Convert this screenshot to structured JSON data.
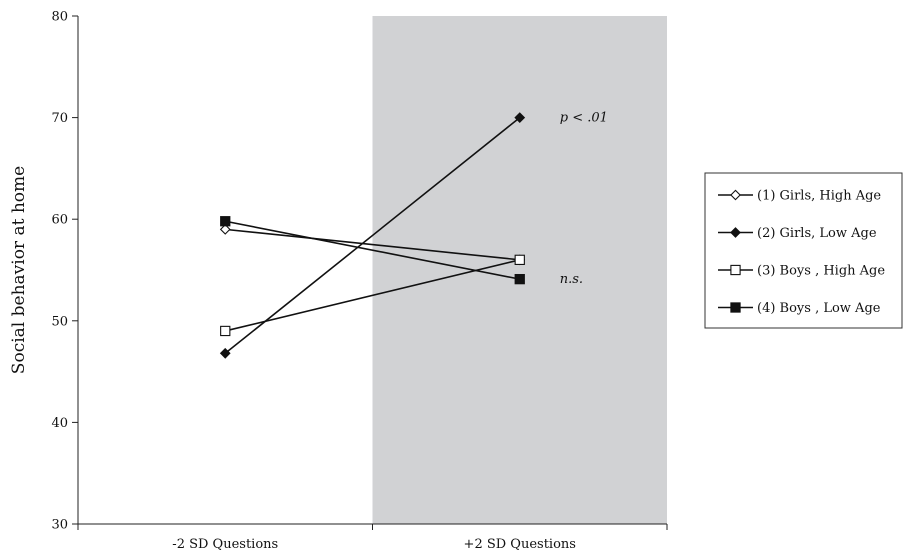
{
  "chart_data": {
    "type": "line",
    "title": "",
    "xlabel": "",
    "ylabel": "Social behavior at home",
    "categories": [
      "-2 SD Questions",
      "+2 SD Questions"
    ],
    "ylim": [
      30,
      80
    ],
    "yticks": [
      30,
      40,
      50,
      60,
      70,
      80
    ],
    "grid": false,
    "shaded_region": {
      "category": "+2 SD Questions",
      "color": "#d1d2d4"
    },
    "legend_position": "right",
    "series": [
      {
        "name": "(1) Girls, High Age",
        "values": [
          59.0,
          56.0
        ],
        "marker": "diamond-open"
      },
      {
        "name": "(2) Girls, Low Age",
        "values": [
          46.8,
          70.0
        ],
        "marker": "diamond-filled"
      },
      {
        "name": "(3) Boys , High Age",
        "values": [
          49.0,
          56.0
        ],
        "marker": "square-open"
      },
      {
        "name": "(4) Boys , Low Age",
        "values": [
          59.8,
          54.1
        ],
        "marker": "square-filled"
      }
    ],
    "annotations": [
      {
        "text": "p < .01",
        "series": 1,
        "point": 1
      },
      {
        "text": "n.s.",
        "series": 3,
        "point": 1
      }
    ]
  }
}
